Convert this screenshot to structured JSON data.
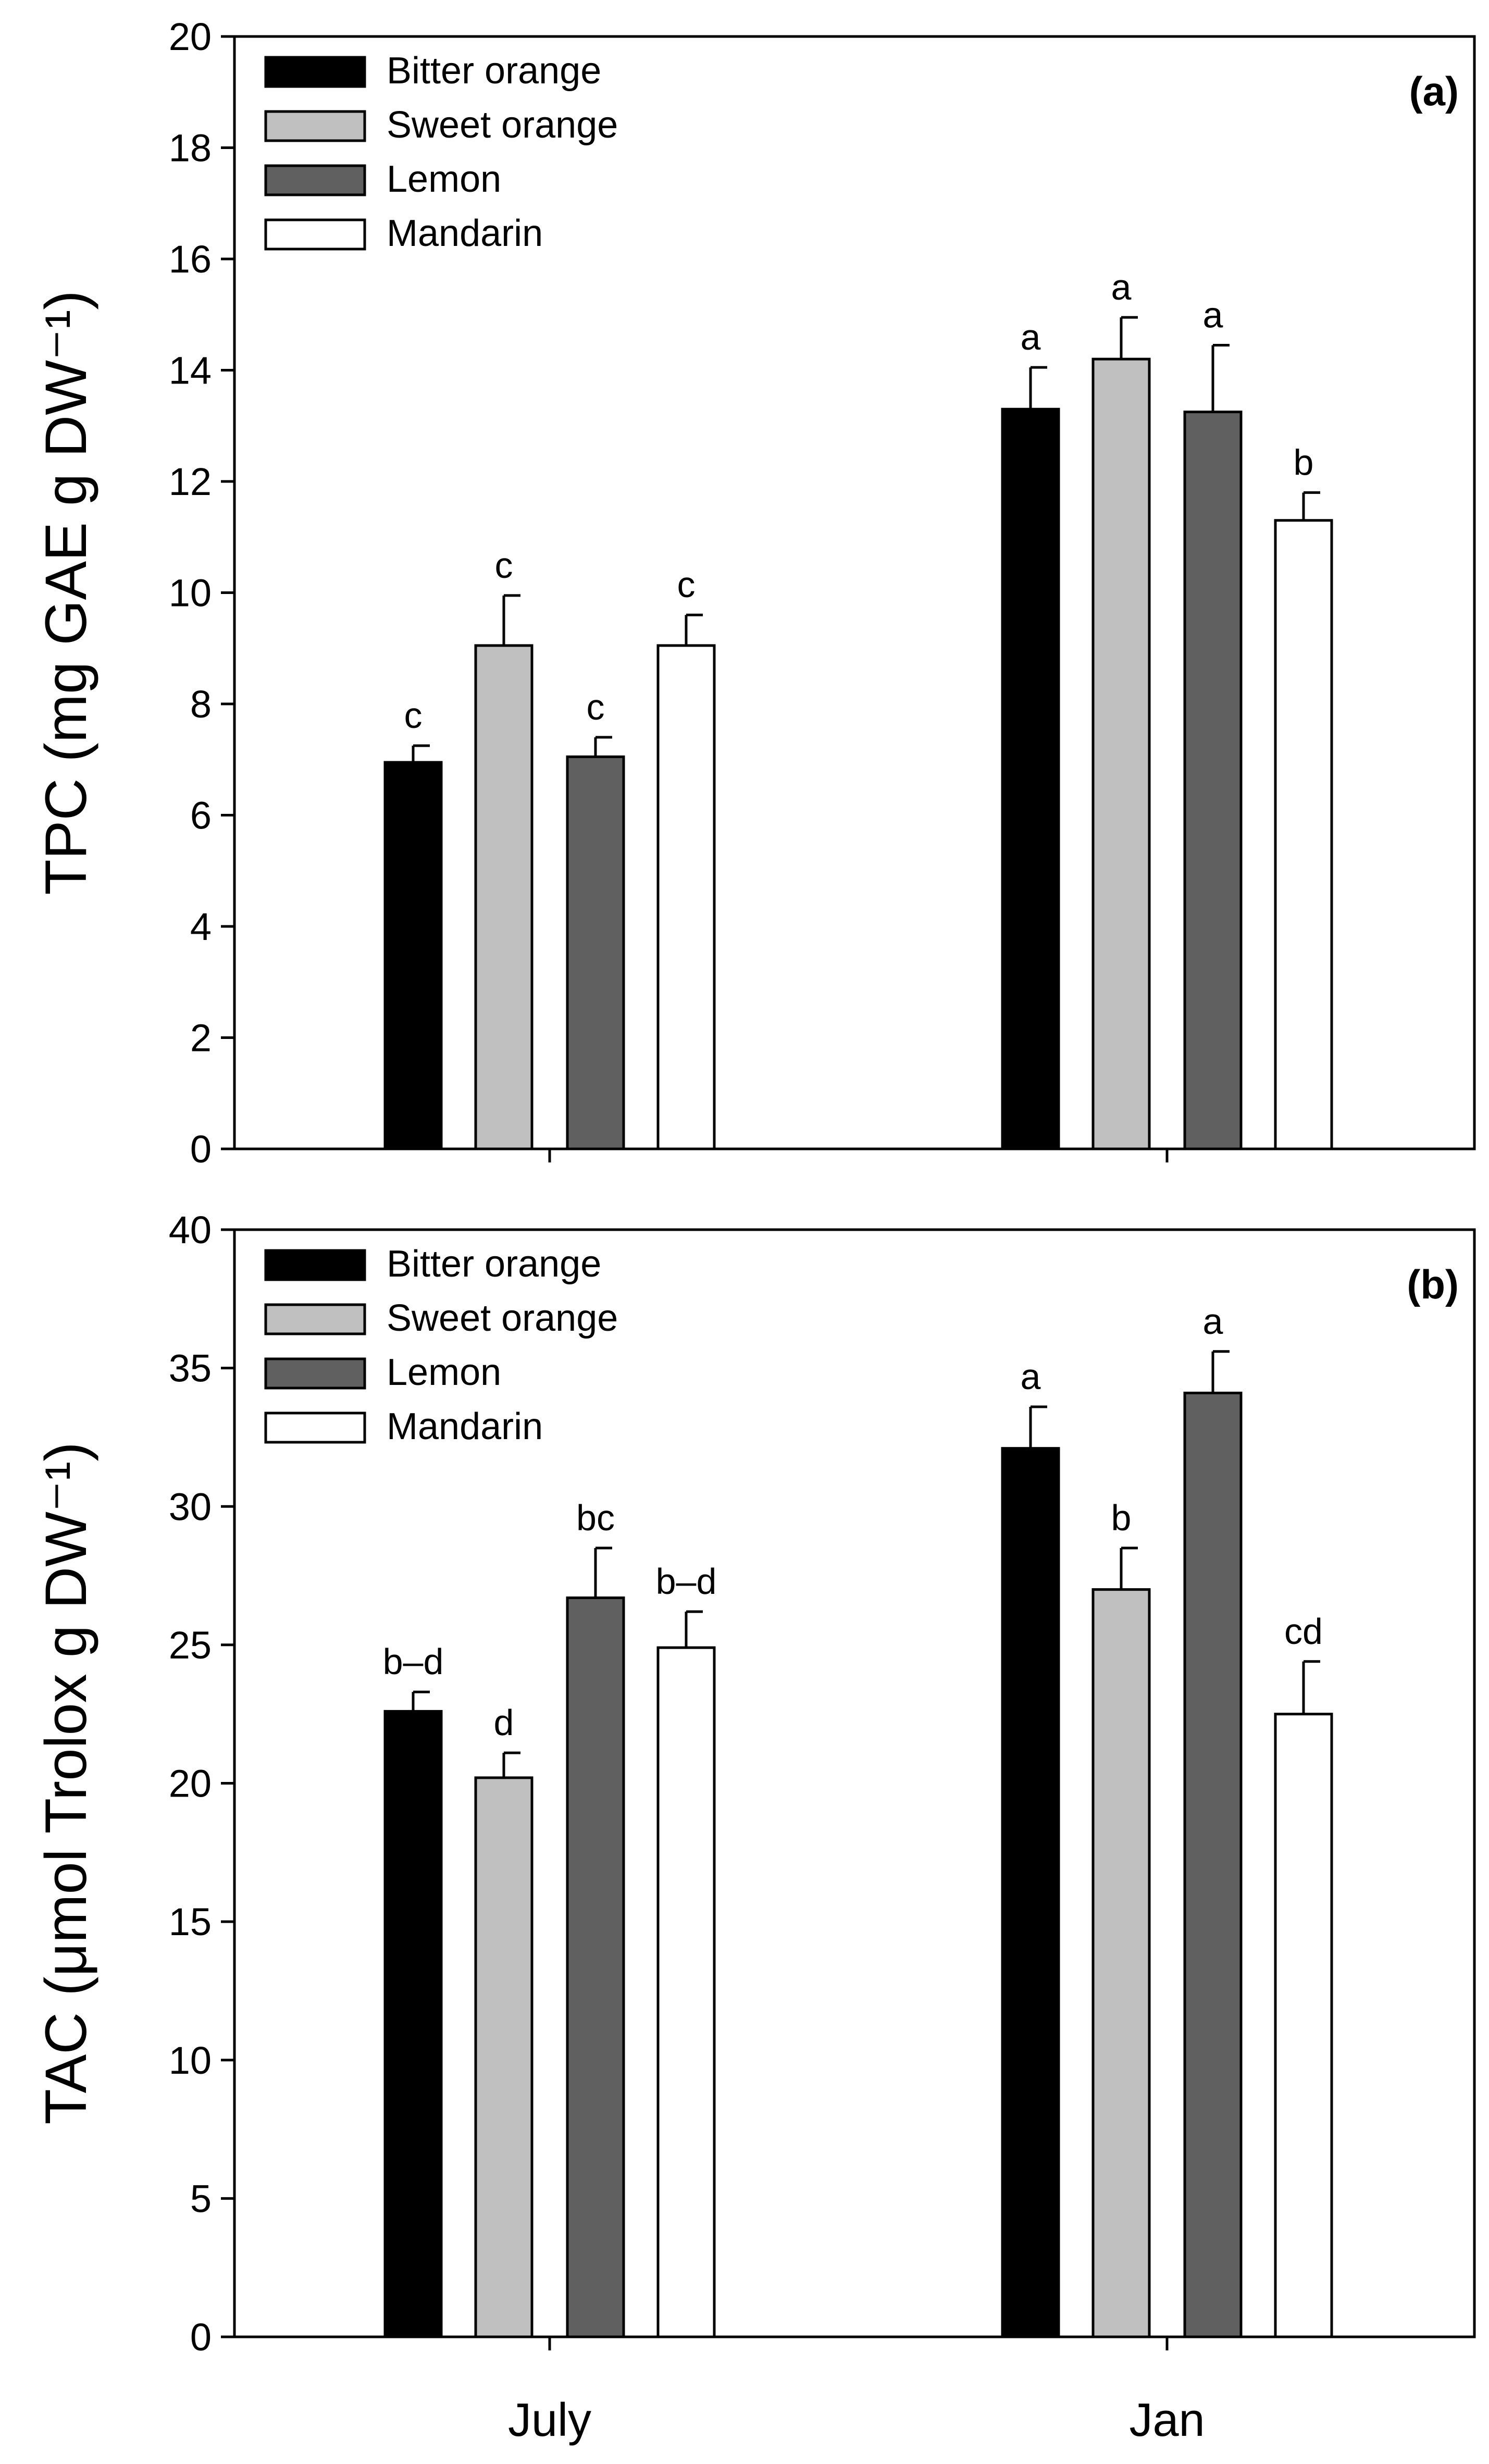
{
  "chart_data": [
    {
      "type": "bar",
      "panel": "(a)",
      "ylabel": "TPC (mg GAE g DW⁻¹)",
      "ylim": [
        0,
        20
      ],
      "yticks": [
        0,
        2,
        4,
        6,
        8,
        10,
        12,
        14,
        16,
        18,
        20
      ],
      "categories": [
        "July",
        "Jan"
      ],
      "show_x_labels": false,
      "series": [
        {
          "name": "Bitter orange",
          "color": "#000000",
          "values": [
            6.95,
            13.3
          ],
          "errors": [
            0.3,
            0.75
          ],
          "letters": [
            "c",
            "a"
          ]
        },
        {
          "name": "Sweet orange",
          "color": "#c0c0c0",
          "values": [
            9.05,
            14.2
          ],
          "errors": [
            0.9,
            0.75
          ],
          "letters": [
            "c",
            "a"
          ]
        },
        {
          "name": "Lemon",
          "color": "#606060",
          "values": [
            7.05,
            13.25
          ],
          "errors": [
            0.35,
            1.2
          ],
          "letters": [
            "c",
            "a"
          ]
        },
        {
          "name": "Mandarin",
          "color": "#ffffff",
          "values": [
            9.05,
            11.3
          ],
          "errors": [
            0.55,
            0.5
          ],
          "letters": [
            "c",
            "b"
          ]
        }
      ]
    },
    {
      "type": "bar",
      "panel": "(b)",
      "ylabel": "TAC (μmol Trolox g DW⁻¹)",
      "ylim": [
        0,
        40
      ],
      "yticks": [
        0,
        5,
        10,
        15,
        20,
        25,
        30,
        35,
        40
      ],
      "categories": [
        "July",
        "Jan"
      ],
      "show_x_labels": true,
      "series": [
        {
          "name": "Bitter orange",
          "color": "#000000",
          "values": [
            22.6,
            32.1
          ],
          "errors": [
            0.7,
            1.5
          ],
          "letters": [
            "b–d",
            "a"
          ]
        },
        {
          "name": "Sweet orange",
          "color": "#c0c0c0",
          "values": [
            20.2,
            27.0
          ],
          "errors": [
            0.9,
            1.5
          ],
          "letters": [
            "d",
            "b"
          ]
        },
        {
          "name": "Lemon",
          "color": "#606060",
          "values": [
            26.7,
            34.1
          ],
          "errors": [
            1.8,
            1.5
          ],
          "letters": [
            "bc",
            "a"
          ]
        },
        {
          "name": "Mandarin",
          "color": "#ffffff",
          "values": [
            24.9,
            22.5
          ],
          "errors": [
            1.3,
            1.9
          ],
          "letters": [
            "b–d",
            "cd"
          ]
        }
      ]
    }
  ]
}
